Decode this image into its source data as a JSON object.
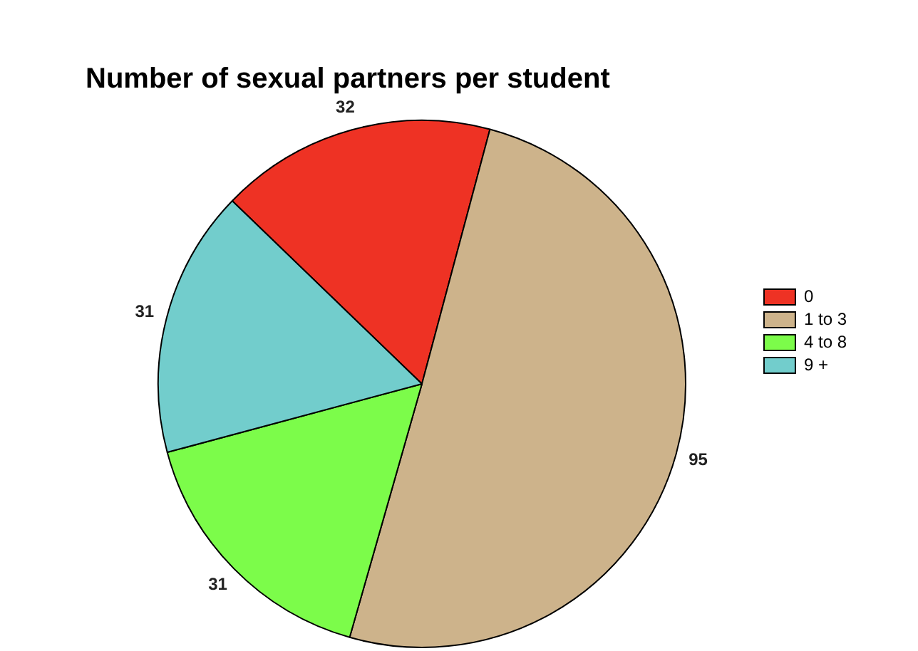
{
  "chart_data": {
    "type": "pie",
    "title": "Number of sexual partners per student",
    "categories": [
      "0",
      "1 to 3",
      "4 to 8",
      "9 +"
    ],
    "values": [
      32,
      95,
      31,
      31
    ],
    "colors": [
      "#ee3224",
      "#cdb38b",
      "#7cfc4a",
      "#72cdcc"
    ],
    "data_labels": true,
    "legend": "right"
  }
}
